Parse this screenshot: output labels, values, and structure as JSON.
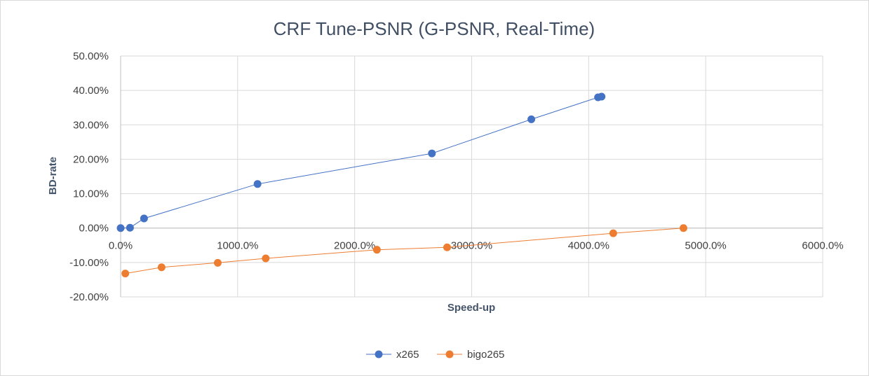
{
  "chart_data": {
    "type": "scatter",
    "title": "CRF Tune-PSNR (G-PSNR, Real-Time)",
    "xlabel": "Speed-up",
    "ylabel": "BD-rate",
    "xlim": [
      0,
      6000
    ],
    "ylim": [
      -20,
      50
    ],
    "x_ticks": [
      0,
      1000,
      2000,
      3000,
      4000,
      5000,
      6000
    ],
    "x_tick_labels": [
      "0.0%",
      "1000.0%",
      "2000.0%",
      "3000.0%",
      "4000.0%",
      "5000.0%",
      "6000.0%"
    ],
    "y_ticks": [
      -20,
      -10,
      0,
      10,
      20,
      30,
      40,
      50
    ],
    "y_tick_labels": [
      "-20.00%",
      "-10.00%",
      "0.00%",
      "10.00%",
      "20.00%",
      "30.00%",
      "40.00%",
      "50.00%"
    ],
    "grid": true,
    "legend_position": "bottom",
    "series": [
      {
        "name": "x265",
        "color": "#4472c4",
        "points": [
          {
            "x": 0,
            "y": 0.0
          },
          {
            "x": 80,
            "y": 0.1
          },
          {
            "x": 200,
            "y": 2.8
          },
          {
            "x": 1170,
            "y": 12.8
          },
          {
            "x": 2660,
            "y": 21.7
          },
          {
            "x": 3510,
            "y": 31.6
          },
          {
            "x": 4080,
            "y": 38.0
          },
          {
            "x": 4110,
            "y": 38.2
          }
        ]
      },
      {
        "name": "bigo265",
        "color": "#ed7d31",
        "points": [
          {
            "x": 40,
            "y": -13.2
          },
          {
            "x": 350,
            "y": -11.4
          },
          {
            "x": 830,
            "y": -10.1
          },
          {
            "x": 1240,
            "y": -8.8
          },
          {
            "x": 2190,
            "y": -6.3
          },
          {
            "x": 2790,
            "y": -5.6
          },
          {
            "x": 4210,
            "y": -1.5
          },
          {
            "x": 4810,
            "y": 0.0
          }
        ]
      }
    ]
  }
}
